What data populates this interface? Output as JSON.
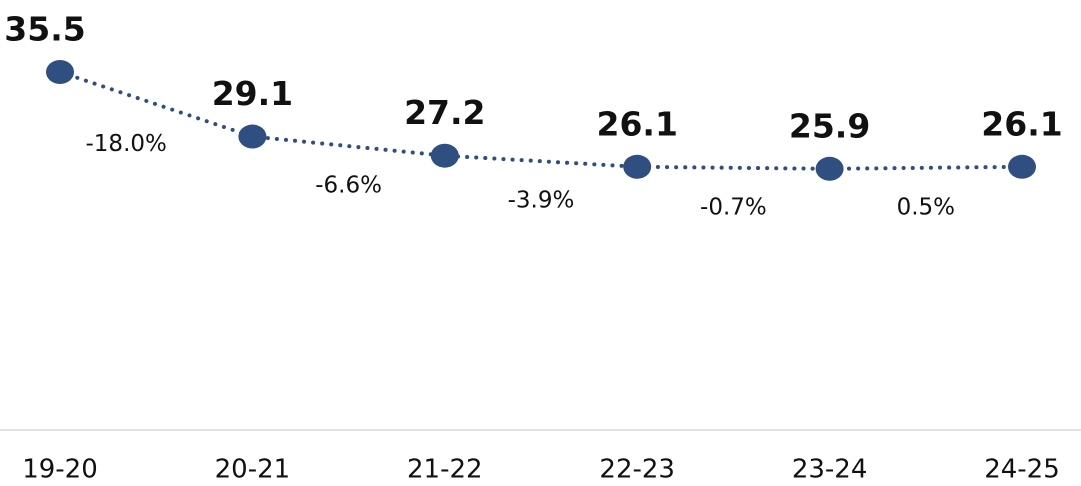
{
  "chart_data": {
    "type": "line",
    "categories": [
      "19-20",
      "20-21",
      "21-22",
      "22-23",
      "23-24",
      "24-25"
    ],
    "values": [
      35.5,
      29.1,
      27.2,
      26.1,
      25.9,
      26.1
    ],
    "color": "#2f4f80",
    "annotations": [
      "-18.0%",
      "-6.6%",
      "-3.9%",
      "-0.7%",
      "0.5%"
    ]
  }
}
